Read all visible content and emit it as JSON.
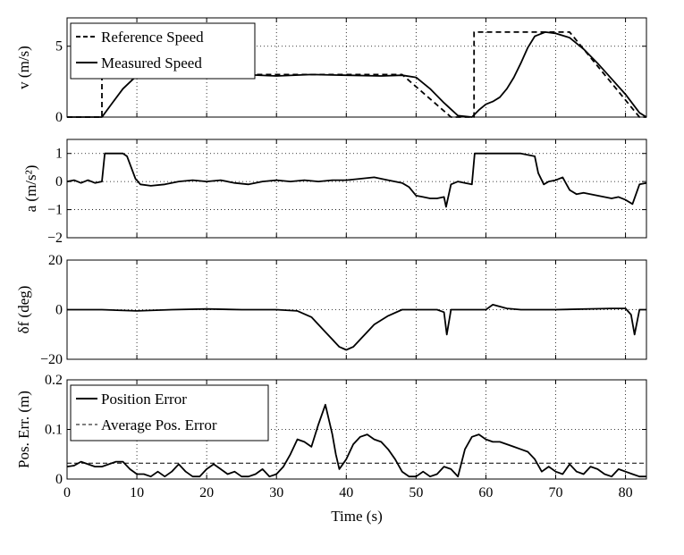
{
  "chart_data": [
    {
      "type": "line",
      "ylabel": "v (m/s)",
      "xlim": [
        0,
        83
      ],
      "ylim": [
        0,
        7
      ],
      "yticks": [
        0,
        5
      ],
      "grid": true,
      "legend_placement": "top-left",
      "series": [
        {
          "name": "Reference Speed",
          "style": "dashed",
          "x": [
            0,
            5,
            5,
            48,
            55,
            58.3,
            58.3,
            72,
            82,
            83
          ],
          "y": [
            0,
            0,
            3,
            3,
            0,
            0,
            6,
            6,
            0,
            0
          ]
        },
        {
          "name": "Measured Speed",
          "style": "solid",
          "x": [
            0,
            5,
            6.5,
            8,
            9.5,
            10.5,
            15,
            20,
            25,
            30,
            35,
            40,
            45,
            48,
            50,
            52,
            54,
            56,
            58,
            59,
            60,
            61,
            62,
            63,
            64,
            65,
            66,
            67,
            68.5,
            70,
            72,
            74,
            76,
            78,
            80,
            82,
            83
          ],
          "y": [
            0,
            0,
            1,
            2,
            2.7,
            3,
            3,
            2.9,
            3,
            2.9,
            3,
            2.95,
            2.9,
            2.95,
            2.8,
            2,
            1,
            0.1,
            0,
            0.5,
            0.9,
            1.1,
            1.4,
            2,
            2.8,
            3.8,
            4.9,
            5.7,
            6,
            5.9,
            5.6,
            4.8,
            3.8,
            2.7,
            1.6,
            0.3,
            0
          ]
        }
      ]
    },
    {
      "type": "line",
      "ylabel": "a (m/s²)",
      "xlim": [
        0,
        83
      ],
      "ylim": [
        -2,
        1.5
      ],
      "yticks": [
        1,
        0,
        -1,
        -2
      ],
      "grid": true,
      "series": [
        {
          "name": "",
          "style": "solid",
          "x": [
            0,
            1,
            2,
            3,
            4,
            5,
            5.4,
            6,
            8,
            8.6,
            9.2,
            9.8,
            10.5,
            12,
            14,
            16,
            18,
            20,
            22,
            24,
            26,
            28,
            30,
            32,
            34,
            36,
            38,
            40,
            42,
            44,
            46,
            48,
            49,
            50,
            51,
            52,
            53,
            54,
            54.3,
            55,
            56,
            57,
            58,
            58.4,
            60,
            62,
            65,
            67,
            67.5,
            68.3,
            69,
            70,
            71,
            72,
            73,
            74,
            76,
            78,
            79,
            80,
            81,
            82,
            83
          ],
          "y": [
            0,
            0.05,
            -0.05,
            0.05,
            -0.05,
            0,
            1,
            1,
            1,
            0.9,
            0.5,
            0.1,
            -0.1,
            -0.15,
            -0.1,
            0,
            0.05,
            0,
            0.05,
            -0.05,
            -0.1,
            0,
            0.05,
            0,
            0.05,
            0,
            0.05,
            0.05,
            0.1,
            0.15,
            0.05,
            -0.05,
            -0.2,
            -0.5,
            -0.55,
            -0.6,
            -0.6,
            -0.55,
            -0.9,
            -0.1,
            0,
            -0.05,
            -0.1,
            1,
            1,
            1,
            1,
            0.9,
            0.3,
            -0.1,
            0,
            0.05,
            0.15,
            -0.3,
            -0.45,
            -0.4,
            -0.5,
            -0.6,
            -0.55,
            -0.65,
            -0.8,
            -0.1,
            -0.05
          ]
        }
      ]
    },
    {
      "type": "line",
      "ylabel": "δf (deg)",
      "xlim": [
        0,
        83
      ],
      "ylim": [
        -20,
        20
      ],
      "yticks": [
        20,
        0,
        -20
      ],
      "grid": true,
      "series": [
        {
          "name": "",
          "style": "solid",
          "x": [
            0,
            5,
            10,
            15,
            20,
            25,
            30,
            33,
            35,
            36,
            37,
            38,
            39,
            40,
            41,
            42,
            43,
            44,
            46,
            48,
            53,
            54,
            54.4,
            55,
            60,
            61,
            63,
            65,
            70,
            78,
            80,
            80.8,
            81.3,
            82,
            83
          ],
          "y": [
            0,
            0,
            -0.5,
            0,
            0.3,
            0,
            0,
            -0.5,
            -3,
            -6,
            -9,
            -12,
            -15,
            -16.2,
            -15,
            -12,
            -9,
            -6,
            -2.5,
            0,
            0,
            -1,
            -10,
            0,
            0,
            2,
            0.5,
            0,
            0,
            0.5,
            0.5,
            -2,
            -10,
            0,
            0
          ]
        }
      ]
    },
    {
      "type": "line",
      "ylabel": "Pos. Err. (m)",
      "xlabel": "Time (s)",
      "xlim": [
        0,
        83
      ],
      "ylim": [
        0,
        0.2
      ],
      "yticks": [
        0.2,
        0.1,
        0
      ],
      "xticks": [
        0,
        10,
        20,
        30,
        40,
        50,
        60,
        70,
        80
      ],
      "grid": true,
      "legend_placement": "top-left",
      "series": [
        {
          "name": "Position Error",
          "style": "solid",
          "x": [
            0,
            1,
            2,
            3,
            4,
            5,
            6,
            7,
            8,
            9,
            10,
            11,
            12,
            13,
            14,
            15,
            16,
            17,
            18,
            19,
            20,
            21,
            22,
            23,
            24,
            25,
            26,
            27,
            28,
            29,
            30,
            31,
            32,
            33,
            34,
            35,
            36,
            37,
            38,
            38.5,
            39,
            40,
            41,
            42,
            43,
            44,
            45,
            46,
            47,
            48,
            49,
            50,
            51,
            52,
            53,
            54,
            55,
            56,
            57,
            58,
            59,
            60,
            61,
            62,
            63,
            64,
            65,
            66,
            67,
            68,
            69,
            70,
            71,
            72,
            73,
            74,
            75,
            76,
            77,
            78,
            79,
            80,
            81,
            82,
            83
          ],
          "y": [
            0.025,
            0.027,
            0.035,
            0.03,
            0.025,
            0.025,
            0.03,
            0.035,
            0.035,
            0.02,
            0.01,
            0.01,
            0.005,
            0.015,
            0.005,
            0.015,
            0.03,
            0.015,
            0.005,
            0.005,
            0.02,
            0.03,
            0.02,
            0.01,
            0.015,
            0.005,
            0.005,
            0.01,
            0.02,
            0.005,
            0.01,
            0.025,
            0.05,
            0.08,
            0.075,
            0.065,
            0.11,
            0.15,
            0.09,
            0.05,
            0.02,
            0.04,
            0.07,
            0.085,
            0.09,
            0.08,
            0.075,
            0.06,
            0.04,
            0.015,
            0.005,
            0.005,
            0.015,
            0.005,
            0.01,
            0.025,
            0.02,
            0.005,
            0.06,
            0.085,
            0.09,
            0.08,
            0.075,
            0.075,
            0.07,
            0.065,
            0.06,
            0.055,
            0.04,
            0.015,
            0.025,
            0.015,
            0.01,
            0.03,
            0.015,
            0.01,
            0.025,
            0.02,
            0.01,
            0.005,
            0.02,
            0.015,
            0.01,
            0.005,
            0.005
          ]
        },
        {
          "name": "Average Pos. Error",
          "style": "dashed",
          "x": [
            0,
            83
          ],
          "y": [
            0.032,
            0.032
          ]
        }
      ]
    }
  ]
}
